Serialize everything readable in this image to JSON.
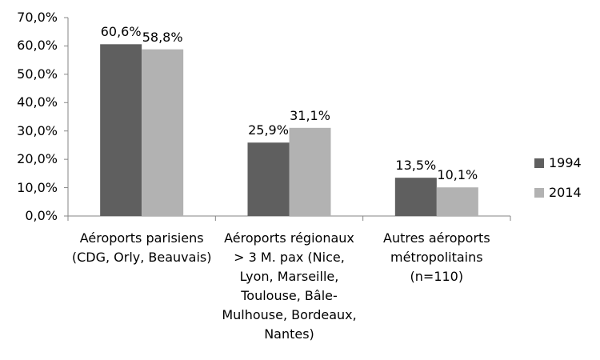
{
  "chart_data": {
    "type": "bar",
    "categories": [
      "Aéroports parisiens\n(CDG, Orly, Beauvais)",
      "Aéroports régionaux\n> 3 M. pax (Nice,\nLyon, Marseille,\nToulouse, Bâle-\nMulhouse, Bordeaux,\nNantes)",
      "Autres aéroports\nmétropolitains\n(n=110)"
    ],
    "series": [
      {
        "name": "1994",
        "values": [
          60.6,
          25.9,
          13.5
        ],
        "labels": [
          "60,6%",
          "25,9%",
          "13,5%"
        ],
        "color": "#5f5f5f"
      },
      {
        "name": "2014",
        "values": [
          58.8,
          31.1,
          10.1
        ],
        "labels": [
          "58,8%",
          "31,1%",
          "10,1%"
        ],
        "color": "#b2b2b2"
      }
    ],
    "yticks": [
      "0,0%",
      "10,0%",
      "20,0%",
      "30,0%",
      "40,0%",
      "50,0%",
      "60,0%",
      "70,0%"
    ],
    "ylim": [
      0,
      70
    ],
    "legend_position": "right",
    "grid": false
  }
}
